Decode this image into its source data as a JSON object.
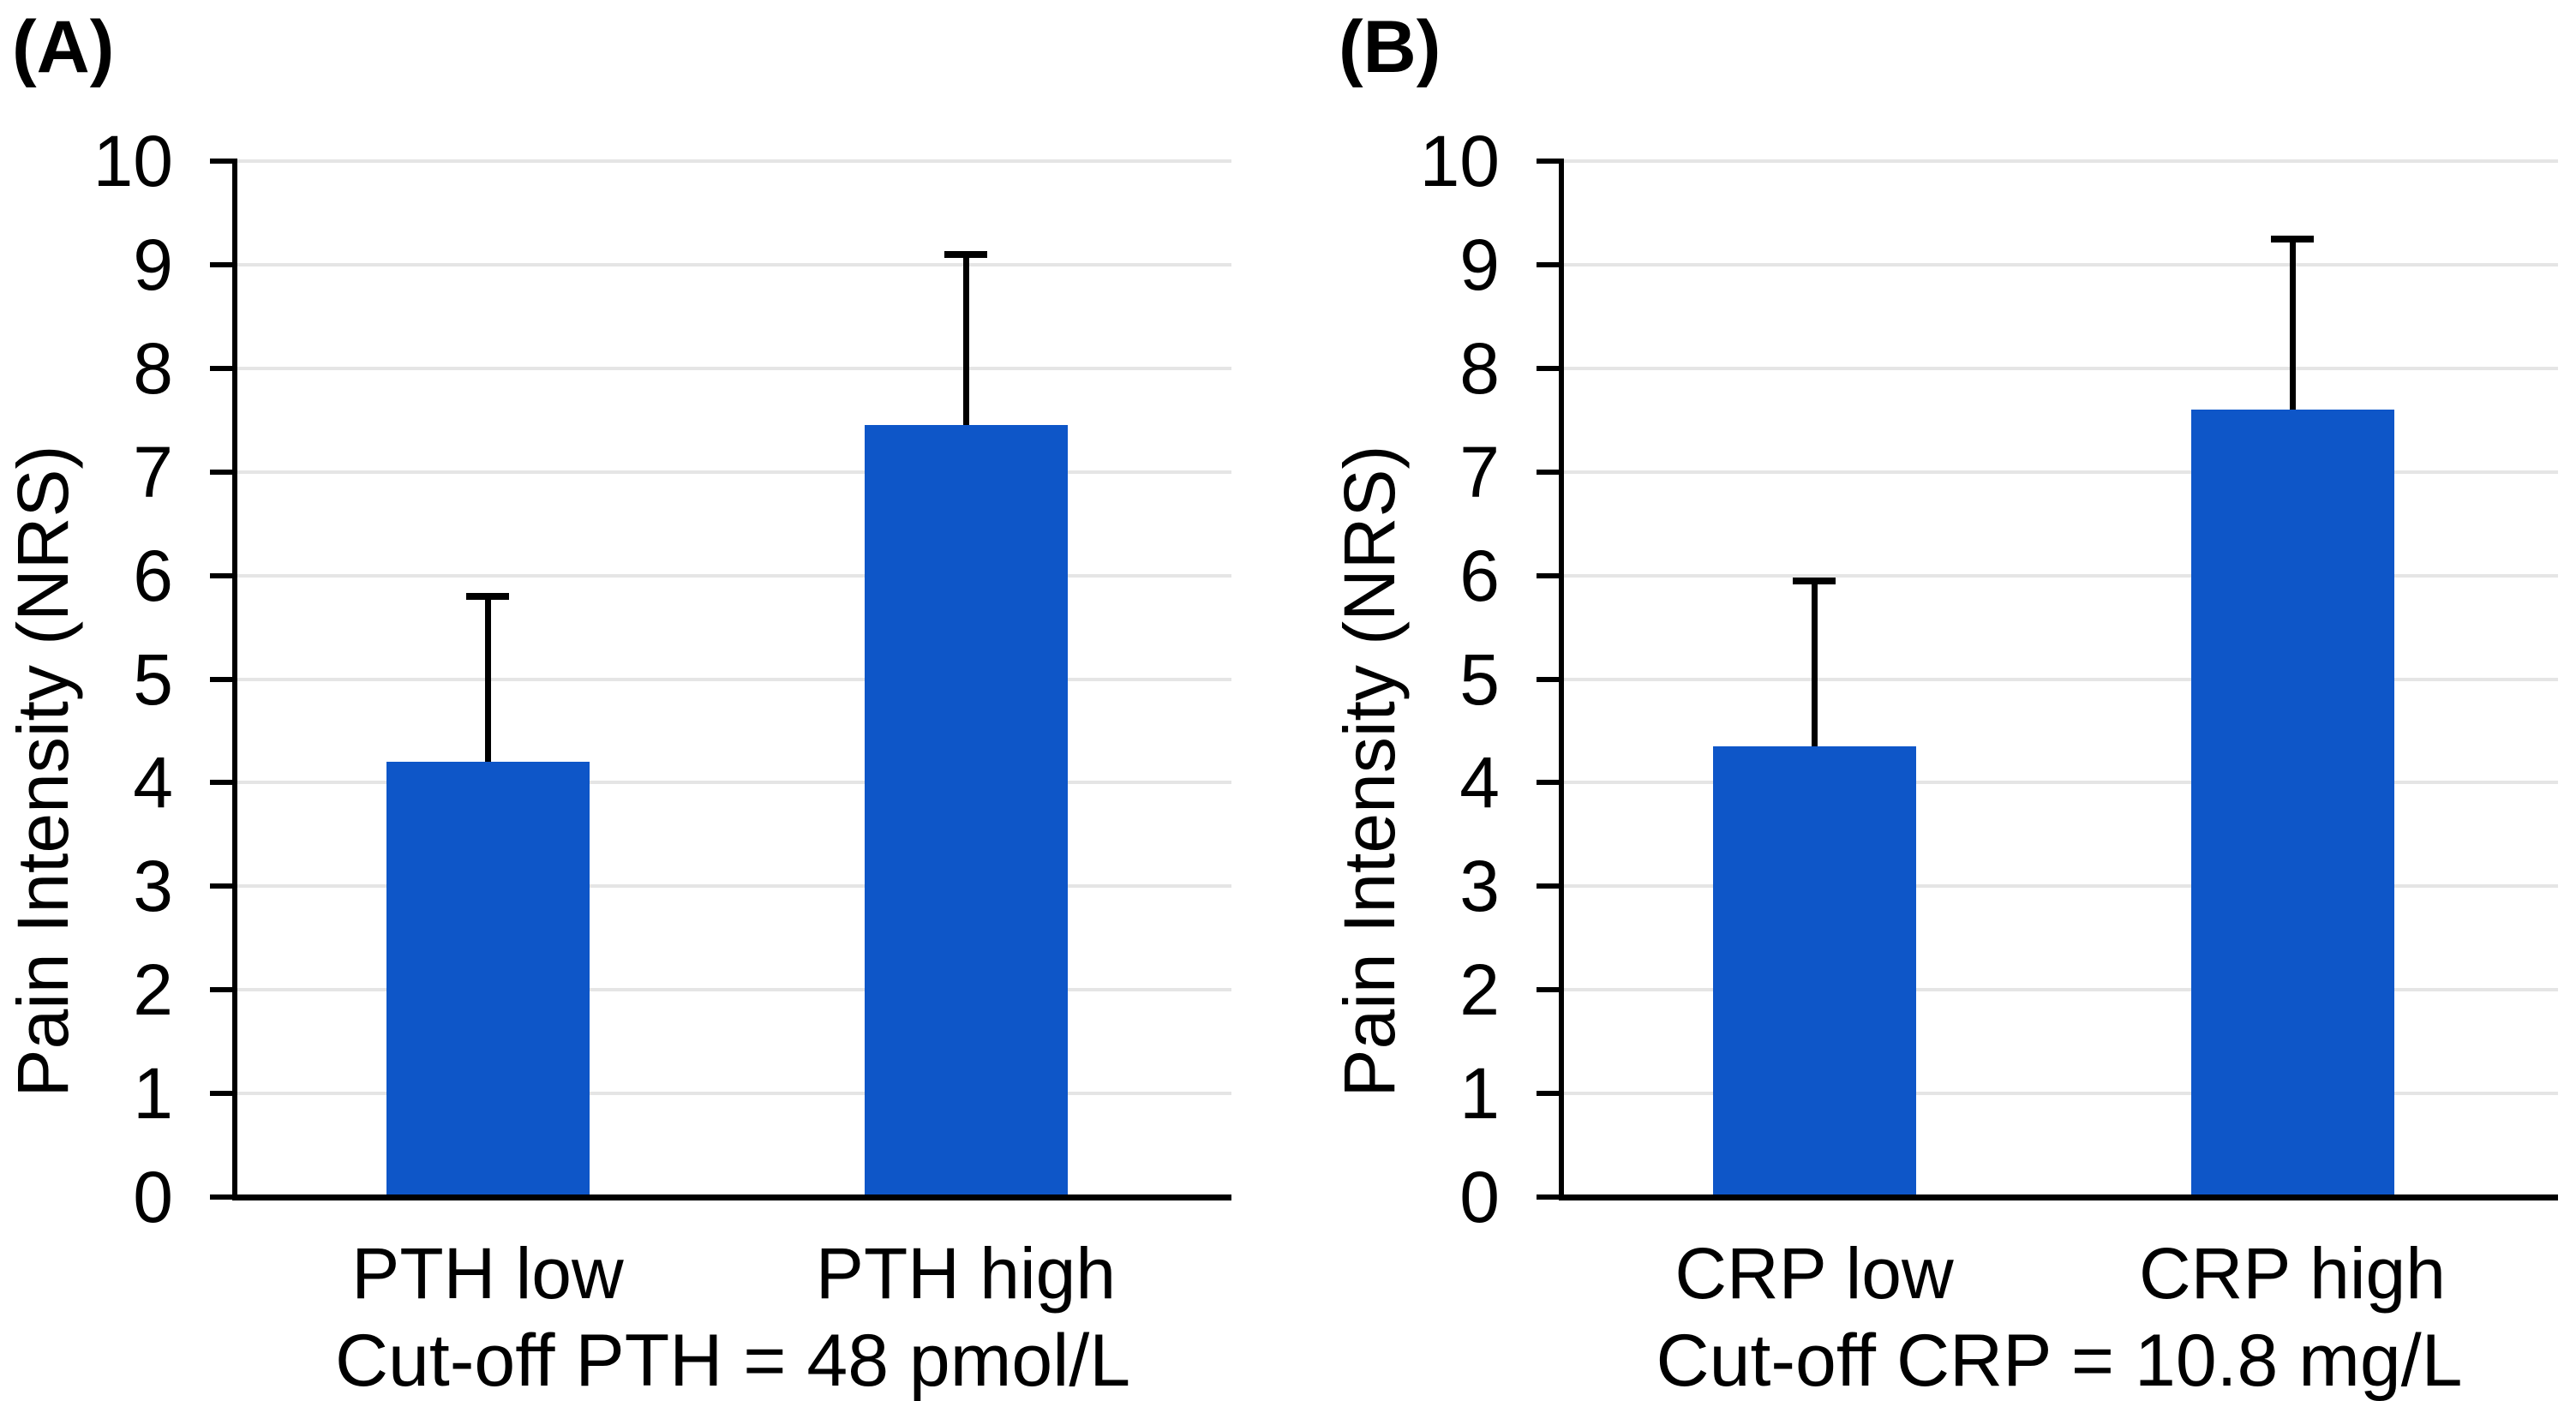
{
  "figure": {
    "background": "#FFFFFF",
    "text_color": "#000000",
    "bar_color": "#0E56C8",
    "gridline_color": "#E5E5E5",
    "axis_color": "#000000"
  },
  "chart_data": [
    {
      "type": "bar",
      "panel_label": "(A)",
      "ylabel": "Pain Intensity (NRS)",
      "xlabel": "",
      "categories": [
        "PTH low",
        "PTH high"
      ],
      "values": [
        4.2,
        7.45
      ],
      "errors_upper": [
        1.6,
        1.65
      ],
      "caption": "Cut-off PTH = 48 pmol/L",
      "ylim": [
        0,
        10
      ],
      "yticks": [
        "0",
        "1",
        "2",
        "3",
        "4",
        "5",
        "6",
        "7",
        "8",
        "9",
        "10"
      ],
      "grid": true,
      "legend": false
    },
    {
      "type": "bar",
      "panel_label": "(B)",
      "ylabel": "Pain Intensity (NRS)",
      "xlabel": "",
      "categories": [
        "CRP low",
        "CRP high"
      ],
      "values": [
        4.35,
        7.6
      ],
      "errors_upper": [
        1.6,
        1.65
      ],
      "caption": "Cut-off CRP = 10.8 mg/L",
      "ylim": [
        0,
        10
      ],
      "yticks": [
        "0",
        "1",
        "2",
        "3",
        "4",
        "5",
        "6",
        "7",
        "8",
        "9",
        "10"
      ],
      "grid": true,
      "legend": false
    }
  ]
}
